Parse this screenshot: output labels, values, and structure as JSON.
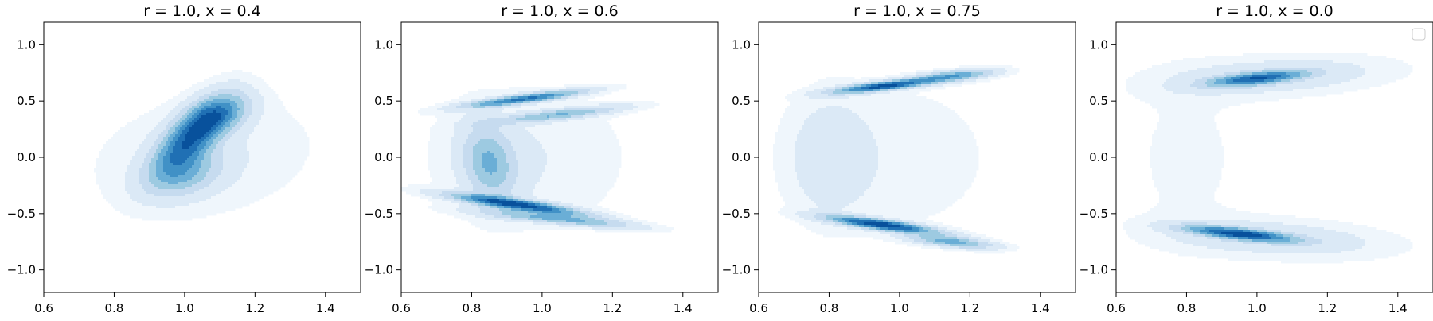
{
  "chart_data": [
    {
      "type": "contour",
      "title": "r = 1.0, x = 0.4",
      "xlim": [
        0.6,
        1.5
      ],
      "ylim": [
        -1.2,
        1.2
      ],
      "xticks": [
        0.6,
        0.8,
        1.0,
        1.2,
        1.4
      ],
      "yticks": [
        -1.0,
        -0.5,
        0.0,
        0.5,
        1.0
      ],
      "xtick_labels": [
        "0.6",
        "0.8",
        "1.0",
        "1.2",
        "1.4"
      ],
      "ytick_labels": [
        "−1.0",
        "−0.5",
        "0.0",
        "0.5",
        "1.0"
      ],
      "colormap": "Blues",
      "legend": false,
      "modes": [
        {
          "cx": 1.02,
          "cy": 0.18,
          "sx": 0.07,
          "sy": 0.22,
          "rho": 0.7,
          "w": 1.0
        },
        {
          "cx": 1.1,
          "cy": 0.38,
          "sx": 0.06,
          "sy": 0.12,
          "rho": 0.4,
          "w": 0.55
        },
        {
          "cx": 1.0,
          "cy": -0.15,
          "sx": 0.07,
          "sy": 0.14,
          "rho": 0.3,
          "w": 0.45
        },
        {
          "cx": 1.05,
          "cy": 0.0,
          "sx": 0.22,
          "sy": 0.38,
          "rho": 0.2,
          "w": 0.12
        }
      ]
    },
    {
      "type": "contour",
      "title": "r = 1.0, x = 0.6",
      "xlim": [
        0.6,
        1.5
      ],
      "ylim": [
        -1.2,
        1.2
      ],
      "xticks": [
        0.6,
        0.8,
        1.0,
        1.2,
        1.4
      ],
      "yticks": [
        -1.0,
        -0.5,
        0.0,
        0.5,
        1.0
      ],
      "xtick_labels": [
        "0.6",
        "0.8",
        "1.0",
        "1.2",
        "1.4"
      ],
      "ytick_labels": [
        "−1.0",
        "−0.5",
        "0.0",
        "0.5",
        "1.0"
      ],
      "colormap": "Blues",
      "legend": false,
      "modes": [
        {
          "cx": 0.95,
          "cy": 0.52,
          "sx": 0.11,
          "sy": 0.05,
          "rho": 0.85,
          "w": 0.8
        },
        {
          "cx": 0.93,
          "cy": -0.42,
          "sx": 0.12,
          "sy": 0.06,
          "rho": -0.85,
          "w": 1.0
        },
        {
          "cx": 1.05,
          "cy": 0.38,
          "sx": 0.12,
          "sy": 0.05,
          "rho": 0.8,
          "w": 0.45
        },
        {
          "cx": 0.85,
          "cy": -0.05,
          "sx": 0.05,
          "sy": 0.22,
          "rho": -0.2,
          "w": 0.45
        },
        {
          "cx": 1.05,
          "cy": -0.55,
          "sx": 0.14,
          "sy": 0.05,
          "rho": -0.8,
          "w": 0.5
        },
        {
          "cx": 0.95,
          "cy": 0.0,
          "sx": 0.2,
          "sy": 0.45,
          "rho": 0.0,
          "w": 0.1
        }
      ]
    },
    {
      "type": "contour",
      "title": "r = 1.0, x = 0.75",
      "xlim": [
        0.6,
        1.5
      ],
      "ylim": [
        -1.2,
        1.2
      ],
      "xticks": [
        0.6,
        0.8,
        1.0,
        1.2,
        1.4
      ],
      "yticks": [
        -1.0,
        -0.5,
        0.0,
        0.5,
        1.0
      ],
      "xtick_labels": [
        "0.6",
        "0.8",
        "1.0",
        "1.2",
        "1.4"
      ],
      "ytick_labels": [
        "−1.0",
        "−0.5",
        "0.0",
        "0.5",
        "1.0"
      ],
      "colormap": "Blues",
      "legend": false,
      "modes": [
        {
          "cx": 0.95,
          "cy": 0.63,
          "sx": 0.09,
          "sy": 0.04,
          "rho": 0.75,
          "w": 0.9
        },
        {
          "cx": 1.15,
          "cy": 0.72,
          "sx": 0.08,
          "sy": 0.04,
          "rho": 0.6,
          "w": 0.55
        },
        {
          "cx": 0.95,
          "cy": -0.6,
          "sx": 0.1,
          "sy": 0.05,
          "rho": -0.8,
          "w": 1.0
        },
        {
          "cx": 1.15,
          "cy": -0.75,
          "sx": 0.08,
          "sy": 0.04,
          "rho": -0.6,
          "w": 0.5
        },
        {
          "cx": 0.8,
          "cy": 0.0,
          "sx": 0.08,
          "sy": 0.35,
          "rho": 0.0,
          "w": 0.14
        },
        {
          "cx": 1.0,
          "cy": 0.0,
          "sx": 0.22,
          "sy": 0.55,
          "rho": 0.0,
          "w": 0.06
        }
      ]
    },
    {
      "type": "contour",
      "title": "r = 1.0, x = 0.0",
      "xlim": [
        0.6,
        1.5
      ],
      "ylim": [
        -1.2,
        1.2
      ],
      "xticks": [
        0.6,
        0.8,
        1.0,
        1.2,
        1.4
      ],
      "yticks": [
        -1.0,
        -0.5,
        0.0,
        0.5,
        1.0
      ],
      "xtick_labels": [
        "0.6",
        "0.8",
        "1.0",
        "1.2",
        "1.4"
      ],
      "ytick_labels": [
        "−1.0",
        "−0.5",
        "0.0",
        "0.5",
        "1.0"
      ],
      "colormap": "Blues",
      "legend": true,
      "legend_position": "top-right",
      "modes": [
        {
          "cx": 1.0,
          "cy": 0.7,
          "sx": 0.09,
          "sy": 0.045,
          "rho": 0.6,
          "w": 0.85
        },
        {
          "cx": 0.95,
          "cy": -0.68,
          "sx": 0.1,
          "sy": 0.045,
          "rho": -0.7,
          "w": 1.0
        },
        {
          "cx": 1.05,
          "cy": 0.72,
          "sx": 0.22,
          "sy": 0.12,
          "rho": 0.3,
          "w": 0.2
        },
        {
          "cx": 1.05,
          "cy": -0.72,
          "sx": 0.22,
          "sy": 0.12,
          "rho": -0.3,
          "w": 0.2
        },
        {
          "cx": 0.8,
          "cy": 0.0,
          "sx": 0.12,
          "sy": 0.55,
          "rho": 0.0,
          "w": 0.06
        }
      ]
    }
  ]
}
